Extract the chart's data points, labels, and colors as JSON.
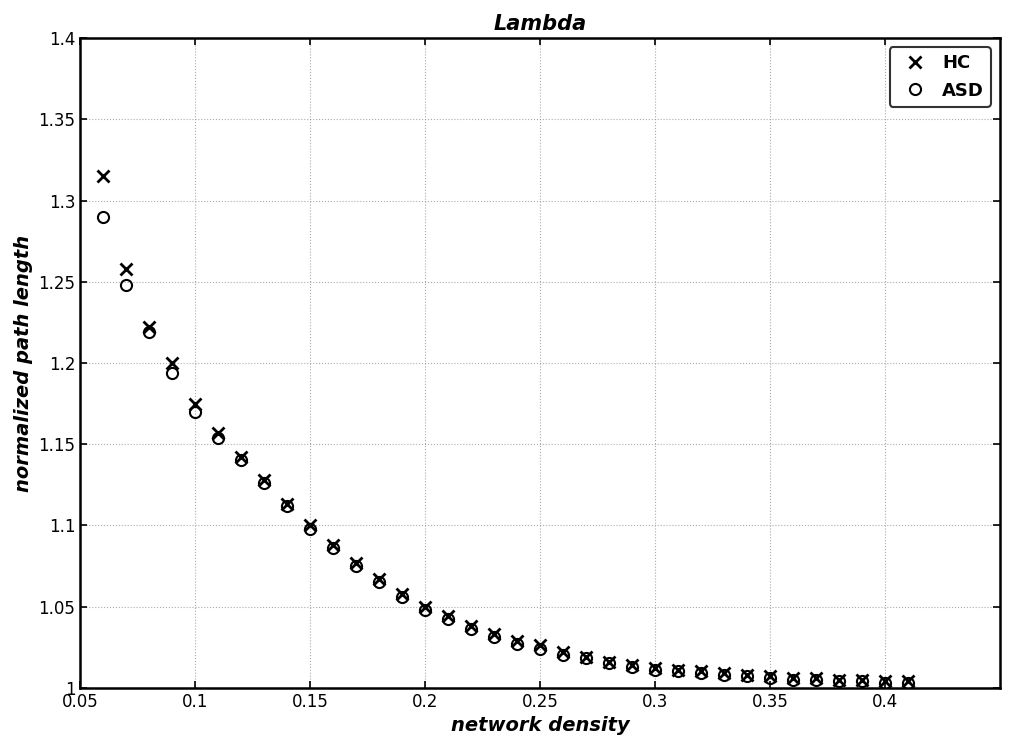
{
  "title": "Lambda",
  "xlabel": "network density",
  "ylabel": "normalized path length",
  "xlim": [
    0.05,
    0.45
  ],
  "ylim": [
    1.0,
    1.4
  ],
  "xticks": [
    0.05,
    0.1,
    0.15,
    0.2,
    0.25,
    0.3,
    0.35,
    0.4
  ],
  "xtick_labels": [
    "0.05",
    "0.1",
    "0.15",
    "0.2",
    "0.25",
    "0.3",
    "0.35",
    "0.4"
  ],
  "yticks": [
    1.0,
    1.05,
    1.1,
    1.15,
    1.2,
    1.25,
    1.3,
    1.35,
    1.4
  ],
  "ytick_labels": [
    "1",
    "1.05",
    "1.1",
    "1.15",
    "1.2",
    "1.25",
    "1.3",
    "1.35",
    "1.4"
  ],
  "HC_x": [
    0.06,
    0.07,
    0.08,
    0.09,
    0.1,
    0.11,
    0.12,
    0.13,
    0.14,
    0.15,
    0.16,
    0.17,
    0.18,
    0.19,
    0.2,
    0.21,
    0.22,
    0.23,
    0.24,
    0.25,
    0.26,
    0.27,
    0.28,
    0.29,
    0.3,
    0.31,
    0.32,
    0.33,
    0.34,
    0.35,
    0.36,
    0.37,
    0.38,
    0.39,
    0.4,
    0.41
  ],
  "HC_y": [
    1.315,
    1.258,
    1.222,
    1.2,
    1.175,
    1.157,
    1.142,
    1.128,
    1.113,
    1.1,
    1.088,
    1.077,
    1.067,
    1.058,
    1.05,
    1.044,
    1.038,
    1.033,
    1.029,
    1.026,
    1.022,
    1.019,
    1.016,
    1.014,
    1.012,
    1.011,
    1.01,
    1.009,
    1.008,
    1.007,
    1.006,
    1.006,
    1.005,
    1.005,
    1.004,
    1.004
  ],
  "ASD_x": [
    0.06,
    0.07,
    0.08,
    0.09,
    0.1,
    0.11,
    0.12,
    0.13,
    0.14,
    0.15,
    0.16,
    0.17,
    0.18,
    0.19,
    0.2,
    0.21,
    0.22,
    0.23,
    0.24,
    0.25,
    0.26,
    0.27,
    0.28,
    0.29,
    0.3,
    0.31,
    0.32,
    0.33,
    0.34,
    0.35,
    0.36,
    0.37,
    0.38,
    0.39,
    0.4,
    0.41
  ],
  "ASD_y": [
    1.29,
    1.248,
    1.219,
    1.194,
    1.17,
    1.154,
    1.14,
    1.126,
    1.112,
    1.098,
    1.086,
    1.075,
    1.065,
    1.056,
    1.048,
    1.042,
    1.036,
    1.031,
    1.027,
    1.024,
    1.02,
    1.018,
    1.015,
    1.013,
    1.011,
    1.01,
    1.009,
    1.008,
    1.007,
    1.006,
    1.005,
    1.005,
    1.004,
    1.004,
    1.003,
    1.003
  ],
  "background_color": "#ffffff",
  "marker_color": "#000000",
  "grid_color": "#888888",
  "legend_loc": "upper right"
}
